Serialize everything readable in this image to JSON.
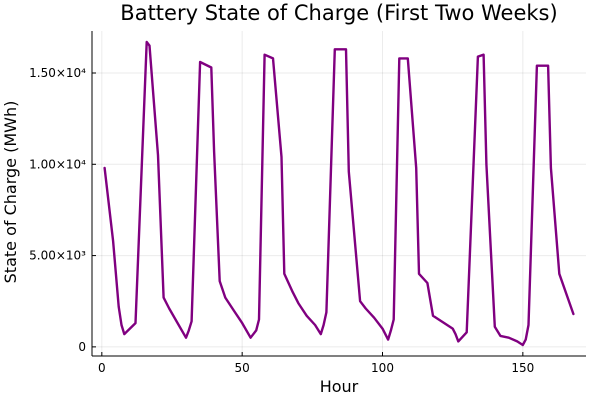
{
  "chart_data": {
    "type": "line",
    "title": "Battery State of Charge (First Two Weeks)",
    "xlabel": "Hour",
    "ylabel": "State of Charge (MWh)",
    "xlim": [
      -3.5,
      172.5
    ],
    "ylim": [
      -500,
      17300
    ],
    "xticks": [
      0,
      50,
      100,
      150
    ],
    "xtick_labels": [
      "0",
      "50",
      "100",
      "150"
    ],
    "yticks": [
      0,
      5000,
      10000,
      15000
    ],
    "ytick_labels": [
      "0",
      "5.00×10³",
      "1.00×10⁴",
      "1.50×10⁴"
    ],
    "grid": true,
    "legend": "none",
    "series": [
      {
        "color": "#800080",
        "x": [
          1,
          4,
          6,
          7,
          8,
          12,
          16,
          17,
          20,
          22,
          24,
          27,
          30,
          31,
          32,
          35,
          39,
          40,
          42,
          44,
          47,
          50,
          53,
          55,
          56,
          58,
          61,
          64,
          65,
          68,
          70,
          73,
          76,
          78,
          79,
          80,
          83,
          87,
          88,
          92,
          94,
          97,
          100,
          102,
          103,
          104,
          106,
          109,
          112,
          113,
          116,
          118,
          121,
          125,
          126,
          127,
          130,
          134,
          136,
          137,
          140,
          142,
          145,
          148,
          150,
          151,
          152,
          155,
          159,
          160,
          163,
          168
        ],
        "y": [
          9800,
          5800,
          2200,
          1200,
          700,
          1300,
          16700,
          16500,
          10500,
          2700,
          2100,
          1300,
          500,
          900,
          1400,
          15600,
          15300,
          10700,
          3600,
          2700,
          2000,
          1300,
          500,
          900,
          1500,
          16000,
          15800,
          10400,
          4000,
          3000,
          2400,
          1700,
          1200,
          700,
          1200,
          1900,
          16300,
          16300,
          9600,
          2500,
          2100,
          1600,
          1000,
          400,
          900,
          1500,
          15800,
          15800,
          9800,
          4000,
          3500,
          1700,
          1400,
          1000,
          700,
          300,
          800,
          15900,
          16000,
          10000,
          1100,
          600,
          500,
          300,
          100,
          400,
          1200,
          15400,
          15400,
          9800,
          4000,
          1800
        ]
      }
    ]
  }
}
